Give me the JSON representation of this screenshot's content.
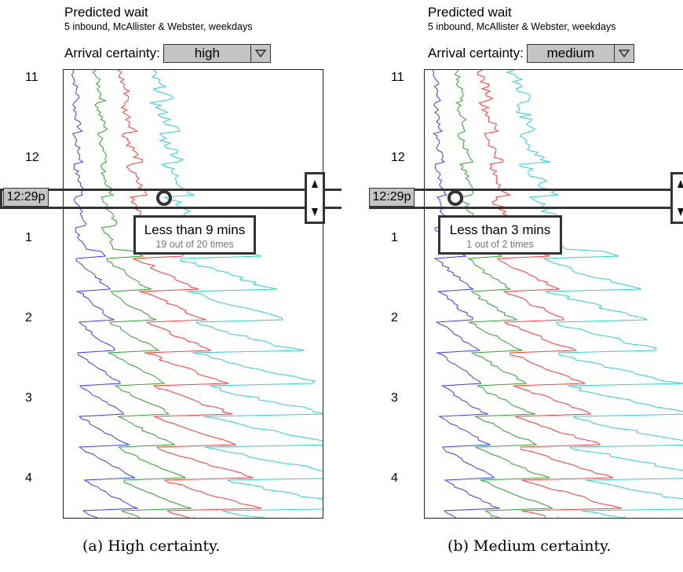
{
  "panels": [
    {
      "title": "Predicted wait",
      "subtitle": "5 inbound, McAllister & Webster, weekdays",
      "certainty_label": "Arrival certainty:",
      "certainty_value": "high",
      "hours": [
        "11",
        "12",
        "1",
        "2",
        "3",
        "4"
      ],
      "current_time": "12:29p",
      "callout_main": "Less than 9 mins",
      "callout_sub": "19 out of 20 times",
      "caption": "(a) High certainty.",
      "marker_fraction": 0.38
    },
    {
      "title": "Predicted wait",
      "subtitle": "5 inbound, McAllister & Webster, weekdays",
      "certainty_label": "Arrival certainty:",
      "certainty_value": "medium",
      "hours": [
        "11",
        "12",
        "1",
        "2",
        "3",
        "4"
      ],
      "current_time": "12:29p",
      "callout_main": "Less than 3 mins",
      "callout_sub": "1 out of 2 times",
      "caption": "(b) Medium certainty.",
      "marker_fraction": 0.12
    }
  ],
  "icons": {
    "select_arrow": "chevron-down-icon",
    "step_up": "triangle-up-icon",
    "step_down": "triangle-down-icon"
  },
  "series_colors": {
    "blue": "#3b3bff",
    "green": "#2ea32e",
    "red": "#ff3b3b",
    "cyan": "#2fd0d0"
  }
}
